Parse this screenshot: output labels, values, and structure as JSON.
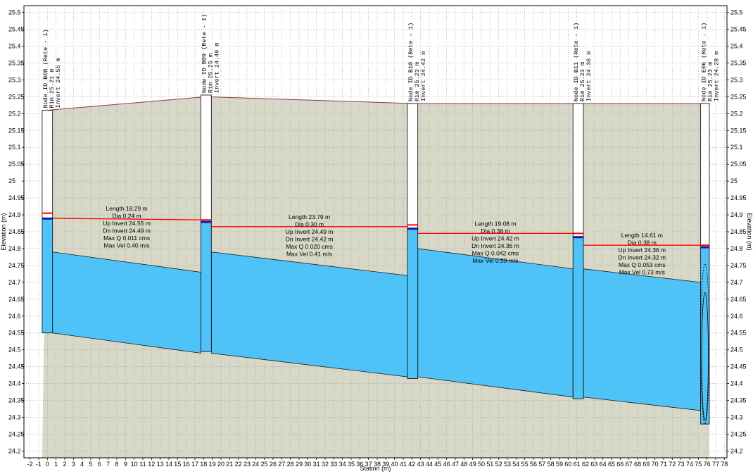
{
  "chart_data": {
    "type": "profile",
    "xlabel": "Station (m)",
    "ylabel_left": "Elevation (m)",
    "ylabel_right": "Elevation (m)",
    "xlim": [
      -2.7,
      78.3
    ],
    "ylim": [
      24.18,
      25.52
    ],
    "x_ticks": [
      -2,
      -1,
      0,
      1,
      2,
      3,
      4,
      5,
      6,
      7,
      8,
      9,
      10,
      11,
      12,
      13,
      14,
      15,
      16,
      17,
      18,
      19,
      20,
      21,
      22,
      23,
      24,
      25,
      26,
      27,
      28,
      29,
      30,
      31,
      32,
      33,
      34,
      35,
      36,
      37,
      38,
      39,
      40,
      41,
      42,
      43,
      44,
      45,
      46,
      47,
      48,
      49,
      50,
      51,
      52,
      53,
      54,
      55,
      56,
      57,
      58,
      59,
      60,
      61,
      62,
      63,
      64,
      65,
      66,
      67,
      68,
      69,
      70,
      71,
      72,
      73,
      74,
      75,
      76,
      77,
      78
    ],
    "y_ticks": [
      "24.2",
      "24.25",
      "24.3",
      "24.35",
      "24.4",
      "24.45",
      "24.5",
      "24.55",
      "24.6",
      "24.65",
      "24.7",
      "24.75",
      "24.8",
      "24.85",
      "24.9",
      "24.95",
      "25",
      "25.05",
      "25.1",
      "25.15",
      "25.2",
      "25.25",
      "25.3",
      "25.35",
      "25.4",
      "25.45",
      "25.5"
    ],
    "grid": true,
    "colors": {
      "ground_fill": "#d8d8c8",
      "ground_line": "#8b3a4a",
      "pipe_fill": "#4fc3f7",
      "hgl": "#ff0000",
      "water_mark": "#1a1aa0"
    },
    "ground_profile": [
      {
        "x": 0,
        "y": 25.21
      },
      {
        "x": 18.29,
        "y": 25.25
      },
      {
        "x": 42.08,
        "y": 25.23
      },
      {
        "x": 61.16,
        "y": 25.23
      },
      {
        "x": 75.77,
        "y": 25.23
      }
    ],
    "nodes": [
      {
        "id": "Node ID B08 (Rete - 1)",
        "rim": "Rim 25.21 m",
        "invert": "Invert 24.55 m",
        "station": 0,
        "rim_el": 25.21,
        "bottom_el": 24.55,
        "hgl": 24.905,
        "water": 24.89,
        "width_m": 1.2
      },
      {
        "id": "Node ID B09 (Rete - 1)",
        "rim": "Rim 25.25 m",
        "invert": "Invert 24.49 m",
        "station": 18.29,
        "rim_el": 25.255,
        "bottom_el": 24.495,
        "hgl": 24.885,
        "water": 24.88,
        "width_m": 1.2
      },
      {
        "id": "Node ID B10 (Rete - 1)",
        "rim": "Rim 25.23 m",
        "invert": "Invert 24.42 m",
        "station": 42.08,
        "rim_el": 25.23,
        "bottom_el": 24.415,
        "hgl": 24.87,
        "water": 24.86,
        "width_m": 1.2
      },
      {
        "id": "Node ID B11 (Rete - 1)",
        "rim": "Rim 25.23 m",
        "invert": "Invert 24.36 m",
        "station": 61.16,
        "rim_el": 25.23,
        "bottom_el": 24.355,
        "hgl": 24.845,
        "water": 24.835,
        "width_m": 1.2
      },
      {
        "id": "Node ID E06 (Rete - 1)",
        "rim": "Rim 25.23 m",
        "invert": "Invert 24.28 m",
        "station": 75.77,
        "rim_el": 25.23,
        "bottom_el": 24.28,
        "hgl": 24.81,
        "water": 24.805,
        "width_m": 1.0
      }
    ],
    "pipes": [
      {
        "x1": 0.6,
        "x2": 17.69,
        "inv_up": 24.55,
        "inv_dn": 24.49,
        "top_up": 24.79,
        "top_dn": 24.73,
        "hgl_up": 24.89,
        "hgl_dn": 24.885,
        "labels": [
          "Length 18.29 m",
          "Dia 0.24 m",
          "Up Invert 24.55 m",
          "Dn Invert 24.49 m",
          "Max Q 0.011 cms",
          "Max Vel 0.40 m/s"
        ]
      },
      {
        "x1": 18.89,
        "x2": 41.48,
        "inv_up": 24.49,
        "inv_dn": 24.42,
        "top_up": 24.79,
        "top_dn": 24.72,
        "hgl_up": 24.865,
        "hgl_dn": 24.865,
        "labels": [
          "Length 23.79 m",
          "Dia 0.30 m",
          "Up Invert 24.49 m",
          "Dn Invert 24.42 m",
          "Max Q 0.020 cms",
          "Max Vel 0.41 m/s"
        ]
      },
      {
        "x1": 42.68,
        "x2": 60.56,
        "inv_up": 24.42,
        "inv_dn": 24.36,
        "top_up": 24.8,
        "top_dn": 24.74,
        "hgl_up": 24.845,
        "hgl_dn": 24.845,
        "labels": [
          "Length 19.08 m",
          "Dia 0.38 m",
          "Up Invert 24.42 m",
          "Dn Invert 24.36 m",
          "Max Q 0.042 cms",
          "Max Vel 0.59 m/s"
        ]
      },
      {
        "x1": 61.76,
        "x2": 75.27,
        "inv_up": 24.36,
        "inv_dn": 24.32,
        "top_up": 24.74,
        "top_dn": 24.7,
        "hgl_up": 24.81,
        "hgl_dn": 24.81,
        "labels": [
          "Length 14.61 m",
          "Dia 0.38 m",
          "Up Invert 24.36 m",
          "Dn Invert 24.32 m",
          "Max Q 0.053 cms",
          "Max Vel 0.73 m/s"
        ]
      }
    ]
  }
}
